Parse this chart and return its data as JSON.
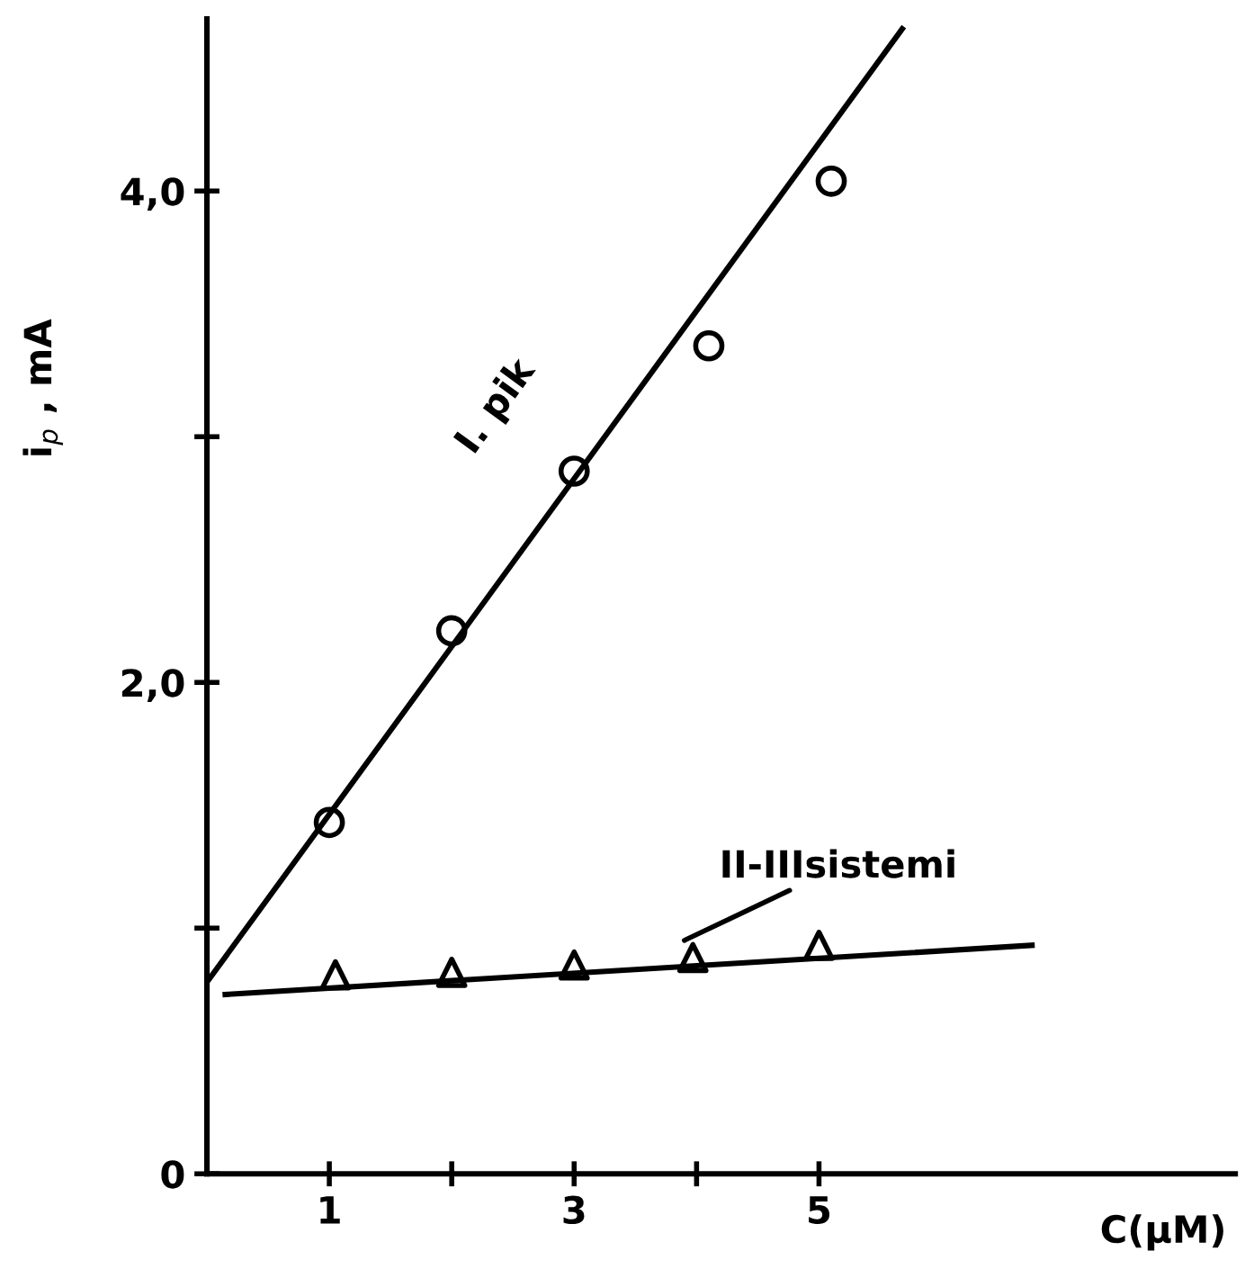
{
  "chart_data": {
    "type": "scatter",
    "xlabel": "C(μM)",
    "ylabel": "i$_{p}$ , mA",
    "xlim": [
      0,
      8.4
    ],
    "ylim": [
      0,
      4.7
    ],
    "xticks": [
      1,
      {
        "value": 2,
        "label": null
      },
      3,
      {
        "value": 4,
        "label": null
      },
      5
    ],
    "yticks": [
      0,
      {
        "value": 1,
        "label": null
      },
      {
        "value": 2,
        "label": "2,0"
      },
      {
        "value": 3,
        "label": null
      },
      {
        "value": 4,
        "label": "4,0"
      }
    ],
    "grid": false,
    "legend": false,
    "series": [
      {
        "marker": "circle",
        "color": "#000000",
        "x": [
          1,
          2,
          3,
          4.1,
          5.1
        ],
        "values": [
          1.43,
          2.21,
          2.86,
          3.37,
          4.04
        ]
      },
      {
        "marker": "triangle",
        "color": "#000000",
        "x": [
          1.05,
          2,
          3,
          3.97,
          5
        ],
        "values": [
          0.81,
          0.82,
          0.85,
          0.88,
          0.93
        ]
      },
      {
        "type": "line",
        "color": "#000000",
        "x": [
          0,
          5.68
        ],
        "values": [
          0.78,
          4.66
        ]
      },
      {
        "type": "line",
        "color": "#000000",
        "x": [
          0.15,
          6.74
        ],
        "values": [
          0.73,
          0.93
        ]
      }
    ],
    "annotations": [
      {
        "text": "I. pik",
        "x": 2.9,
        "y": 2.76
      },
      {
        "text": "II-IIIsistemi",
        "x": 3.9,
        "y": 0.95
      }
    ]
  }
}
